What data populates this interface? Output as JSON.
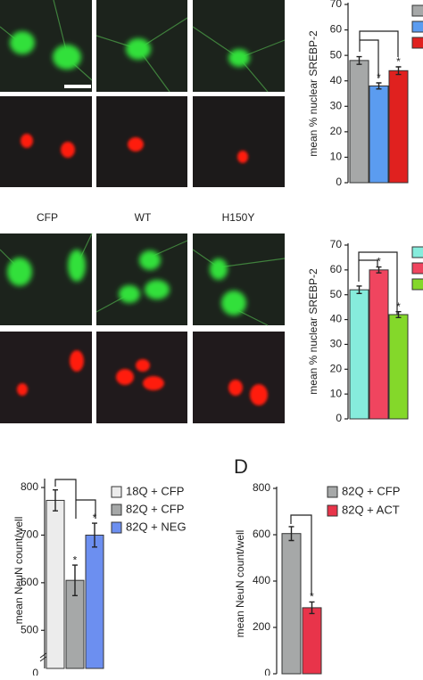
{
  "image_labels": [
    "CFP",
    "WT",
    "H150Y"
  ],
  "chart_data": [
    {
      "type": "bar",
      "y_label": "mean % nuclear SREBP-2",
      "categories": [
        null,
        null,
        null
      ],
      "values": [
        48,
        38,
        44
      ],
      "errors": [
        1.5,
        1.2,
        1.5
      ],
      "colors": [
        "#a6a8a8",
        "#5b9cf0",
        "#e0211f"
      ],
      "annotations": [
        null,
        "*",
        "*"
      ],
      "ylim": [
        0,
        70
      ],
      "yticks": [
        0,
        10,
        20,
        30,
        40,
        50,
        60,
        70
      ]
    },
    {
      "type": "bar",
      "y_label": "mean % nuclear SREBP-2",
      "categories": [
        null,
        null,
        null
      ],
      "values": [
        52,
        60,
        42
      ],
      "errors": [
        1.5,
        1.2,
        1.2
      ],
      "colors": [
        "#86ecdc",
        "#f0455f",
        "#84d82a"
      ],
      "annotations": [
        null,
        "*",
        "*"
      ],
      "ylim": [
        0,
        70
      ],
      "yticks": [
        0,
        10,
        20,
        30,
        40,
        50,
        60,
        70
      ]
    },
    {
      "type": "bar",
      "y_label": "mean NeuN count/well",
      "categories": [
        "18Q + CFP",
        "82Q + CFP",
        "82Q + NEG"
      ],
      "values": [
        773,
        605,
        700
      ],
      "errors": [
        22,
        32,
        25
      ],
      "colors": [
        "#ececec",
        "#a6a8a8",
        "#6c8ff0"
      ],
      "annotations": [
        null,
        "*",
        "*"
      ],
      "ylim": [
        420,
        815
      ],
      "yticks": [
        500,
        600,
        700,
        800
      ],
      "axis_break": 0
    },
    {
      "type": "bar",
      "panel_label": "D",
      "y_label": "mean NeuN count/well",
      "categories": [
        "82Q + CFP",
        "82Q + ACT"
      ],
      "values": [
        605,
        285
      ],
      "errors": [
        30,
        25
      ],
      "colors": [
        "#a6a8a8",
        "#e8344a"
      ],
      "annotations": [
        null,
        "*"
      ],
      "ylim": [
        0,
        800
      ],
      "yticks": [
        0,
        200,
        400,
        600,
        800
      ]
    }
  ]
}
